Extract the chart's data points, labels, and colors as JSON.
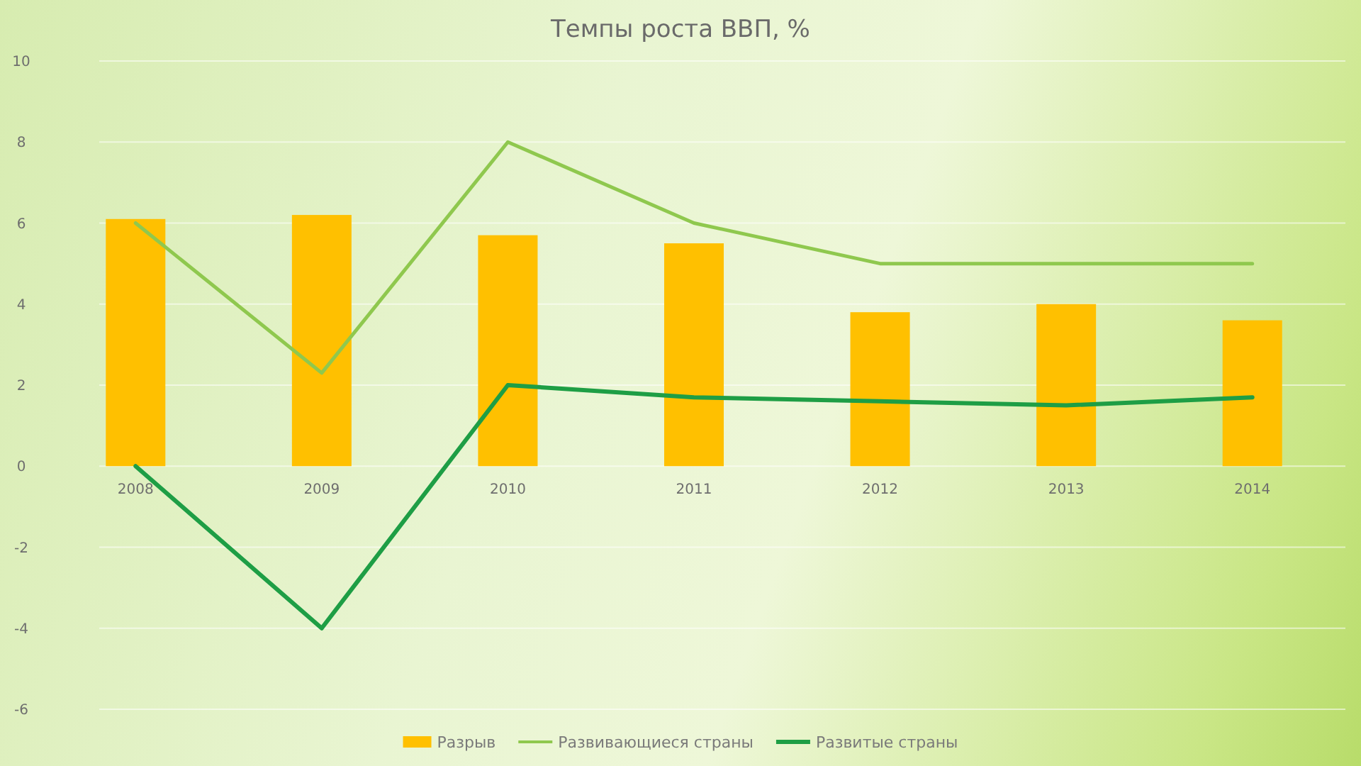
{
  "chart_data": {
    "type": "bar",
    "title": "Темпы роста ВВП, %",
    "categories": [
      "2008",
      "2009",
      "2010",
      "2011",
      "2012",
      "2013",
      "2014"
    ],
    "series": [
      {
        "name": "Разрыв",
        "color": "#ffc000",
        "values": [
          6.1,
          6.2,
          5.7,
          5.5,
          3.8,
          4.0,
          3.6
        ]
      },
      {
        "name": "Развивающиеся страны",
        "type": "line",
        "color": "#8fc84e",
        "values": [
          6.0,
          2.3,
          8.0,
          6.0,
          5.0,
          5.0,
          5.0
        ]
      },
      {
        "name": "Развитые страны",
        "type": "line",
        "color": "#1e9e45",
        "values": [
          0,
          -4.0,
          2.0,
          1.7,
          1.6,
          1.5,
          1.7
        ]
      }
    ],
    "ylim": [
      -6,
      10
    ],
    "yticks": [
      -6,
      -4,
      -2,
      0,
      2,
      4,
      6,
      8,
      10
    ],
    "grid": "y",
    "legend": "bottom"
  }
}
